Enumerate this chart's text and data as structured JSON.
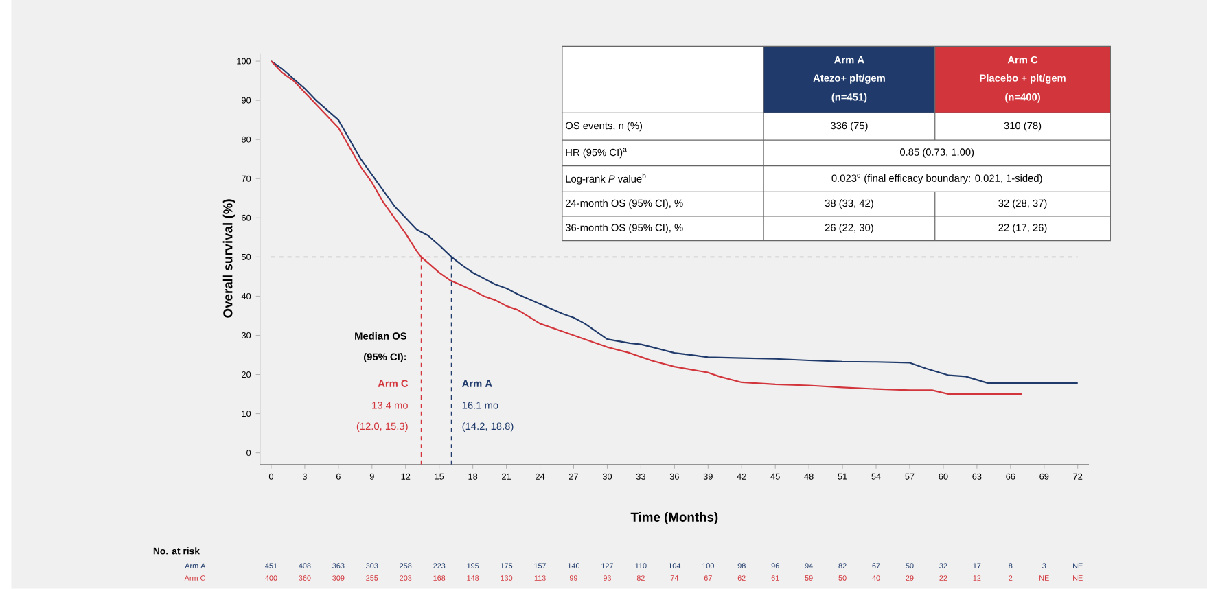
{
  "chart_data": {
    "type": "line",
    "xlabel": "Time (Months)",
    "ylabel": "Overall survival (%)",
    "xlim": [
      -1,
      73
    ],
    "ylim": [
      -3,
      102
    ],
    "xticks": [
      0,
      3,
      6,
      9,
      12,
      15,
      18,
      21,
      24,
      27,
      30,
      33,
      36,
      39,
      42,
      45,
      48,
      51,
      54,
      57,
      60,
      63,
      66,
      69,
      72
    ],
    "yticks": [
      0,
      10,
      20,
      30,
      40,
      50,
      60,
      70,
      80,
      90,
      100
    ],
    "series": [
      {
        "color": "#1f3a6b",
        "x": [
          0,
          1,
          2,
          3,
          4,
          5,
          6,
          7,
          8,
          9,
          10,
          11,
          12,
          13,
          14,
          15,
          16.1,
          17,
          18,
          19,
          20,
          21,
          22,
          24,
          26,
          27,
          28,
          30,
          32,
          33,
          34,
          36,
          38,
          39,
          42,
          45,
          48,
          51,
          54,
          57,
          58.5,
          60.5,
          62,
          64,
          66,
          68,
          70,
          72
        ],
        "values": [
          100,
          98,
          95.5,
          93,
          90,
          87.5,
          85,
          80,
          75,
          71,
          67,
          63,
          60,
          57,
          55.5,
          53,
          50,
          48,
          46,
          44.5,
          43,
          42,
          40.5,
          38,
          35.5,
          34.5,
          33,
          29,
          28,
          27.7,
          27,
          25.5,
          24.8,
          24.4,
          24.2,
          24,
          23.6,
          23.3,
          23.2,
          23,
          21.5,
          19.8,
          19.5,
          17.8,
          17.8,
          17.8,
          17.8,
          17.8
        ]
      },
      {
        "color": "#d2353b",
        "x": [
          0,
          1,
          2,
          3,
          4,
          5,
          6,
          7,
          8,
          9,
          10,
          11,
          12,
          13,
          13.4,
          14,
          15,
          16,
          18,
          19,
          20,
          21,
          22,
          24,
          26,
          27,
          28,
          30,
          32,
          33,
          34,
          36,
          38,
          39,
          40,
          42,
          45,
          48,
          51,
          54,
          57,
          59,
          60.5,
          63,
          65,
          67
        ],
        "values": [
          100,
          97,
          95,
          92,
          89,
          86,
          83,
          78,
          73,
          69,
          64,
          60,
          56,
          51.5,
          50,
          48.5,
          46,
          44,
          41.5,
          40,
          39,
          37.5,
          36.5,
          33,
          31,
          30,
          29,
          27,
          25.5,
          24.5,
          23.5,
          22,
          21,
          20.5,
          19.5,
          18,
          17.5,
          17.2,
          16.7,
          16.3,
          16,
          16,
          15,
          15,
          15,
          15
        ]
      }
    ],
    "ref_lines": [
      {
        "axis": "y",
        "value": 50,
        "color": "#c8c8c8",
        "line_style": "dashed"
      },
      {
        "axis": "x",
        "value": 13.4,
        "color": "#d2353b",
        "line_style": "dashed"
      },
      {
        "axis": "x",
        "value": 16.1,
        "color": "#1f3a6b",
        "line_style": "dashed"
      }
    ],
    "annotations": [
      "Median OS",
      "(95% CI):",
      "Arm C",
      "13.4 mo",
      "(12.0, 15.3)",
      "Arm A",
      "16.1 mo",
      "(14.2, 18.8)",
      "No. at risk",
      "Arm A",
      "Arm C",
      "451",
      "408",
      "363",
      "303",
      "258",
      "223",
      "195",
      "175",
      "157",
      "140",
      "127",
      "110",
      "104",
      "100",
      "98",
      "96",
      "94",
      "82",
      "67",
      "50",
      "32",
      "17",
      "8",
      "3",
      "NE",
      "400",
      "360",
      "309",
      "255",
      "203",
      "168",
      "148",
      "130",
      "113",
      "99",
      "93",
      "82",
      "74",
      "67",
      "62",
      "61",
      "59",
      "50",
      "40",
      "29",
      "22",
      "12",
      "2",
      "NE",
      "NE",
      "Arm A",
      "Atezo+ plt/gem",
      "(n=451)",
      "Arm C",
      "Placebo + plt/gem",
      "(n=400)",
      "OS events, n (%)",
      "336 (75)",
      "310 (78)",
      "HR (95% CI)$^{a}$",
      "0.85 (0.73, 1.00)",
      "Log-rank *P* value$^{b}$",
      "0.023$^{c}$ (final efficacy boundary: 0.021, 1-sided)",
      "24-month OS (95% CI), %",
      "38 (33, 42)",
      "32 (28, 37)",
      "36-month OS (95% CI), %",
      "26 (22, 30)",
      "22 (17, 26)"
    ]
  }
}
